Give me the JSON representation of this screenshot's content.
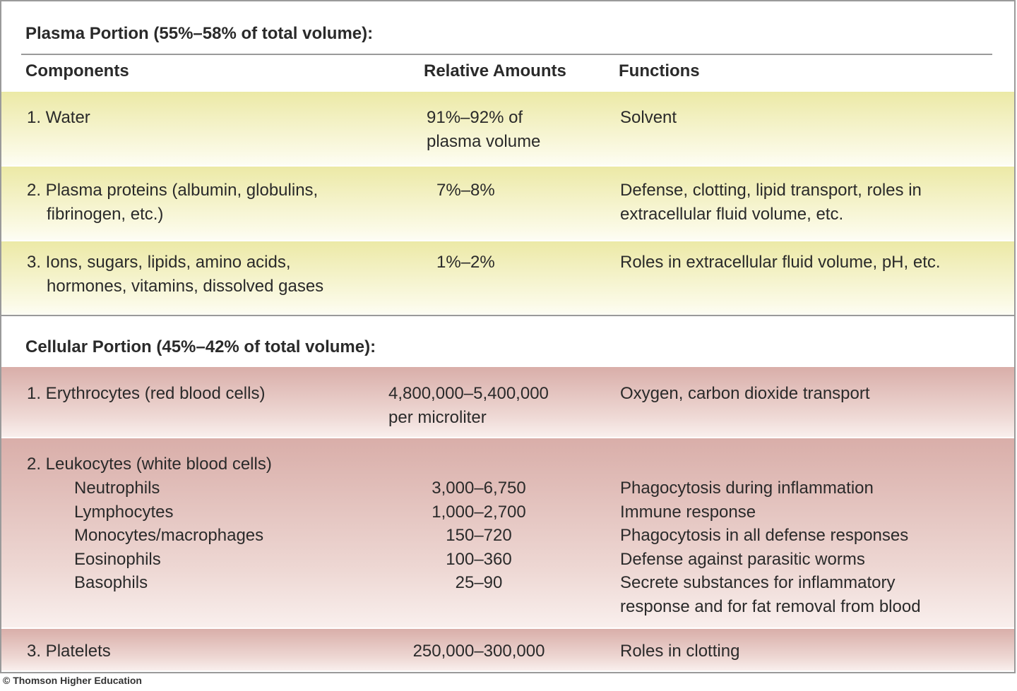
{
  "plasma": {
    "title": "Plasma Portion (55%–58% of total volume):",
    "headers": [
      "Components",
      "Relative Amounts",
      "Functions"
    ],
    "rows": [
      {
        "component": [
          "1. Water"
        ],
        "amount": [
          "91%–92% of",
          "plasma volume"
        ],
        "function": [
          "Solvent"
        ]
      },
      {
        "component": [
          "2. Plasma proteins (albumin, globulins,",
          "fibrinogen, etc.)"
        ],
        "amount": [
          "7%–8%"
        ],
        "function": [
          "Defense, clotting, lipid transport, roles in",
          "extracellular fluid volume, etc."
        ]
      },
      {
        "component": [
          "3. Ions, sugars, lipids, amino acids,",
          "hormones, vitamins, dissolved gases"
        ],
        "amount": [
          "1%–2%"
        ],
        "function": [
          "Roles in extracellular fluid volume, pH, etc."
        ]
      }
    ]
  },
  "cellular": {
    "title": "Cellular Portion (45%–42% of total volume):",
    "erythrocytes": {
      "component": "1. Erythrocytes (red blood cells)",
      "amount": [
        "4,800,000–5,400,000",
        "per microliter"
      ],
      "function": "Oxygen, carbon dioxide transport"
    },
    "leukocytes": {
      "component": "2. Leukocytes (white blood cells)",
      "types": [
        {
          "name": "Neutrophils",
          "amount": "3,000–6,750",
          "function": [
            "Phagocytosis during inflammation"
          ]
        },
        {
          "name": "Lymphocytes",
          "amount": "1,000–2,700",
          "function": [
            "Immune response"
          ]
        },
        {
          "name": "Monocytes/macrophages",
          "amount": "150–720",
          "function": [
            "Phagocytosis in all defense responses"
          ]
        },
        {
          "name": "Eosinophils",
          "amount": "100–360",
          "function": [
            "Defense against parasitic worms"
          ]
        },
        {
          "name": "Basophils",
          "amount": "25–90",
          "function": [
            "Secrete substances for inflammatory",
            "response and for fat removal from blood"
          ]
        }
      ]
    },
    "platelets": {
      "component": "3. Platelets",
      "amount": "250,000–300,000",
      "function": "Roles in clotting"
    }
  },
  "colors": {
    "plasma_row": "#ece9a6",
    "cellular_row": "#d9aea9",
    "border": "#9a9a9a"
  },
  "footer": "© Thomson Higher Education"
}
